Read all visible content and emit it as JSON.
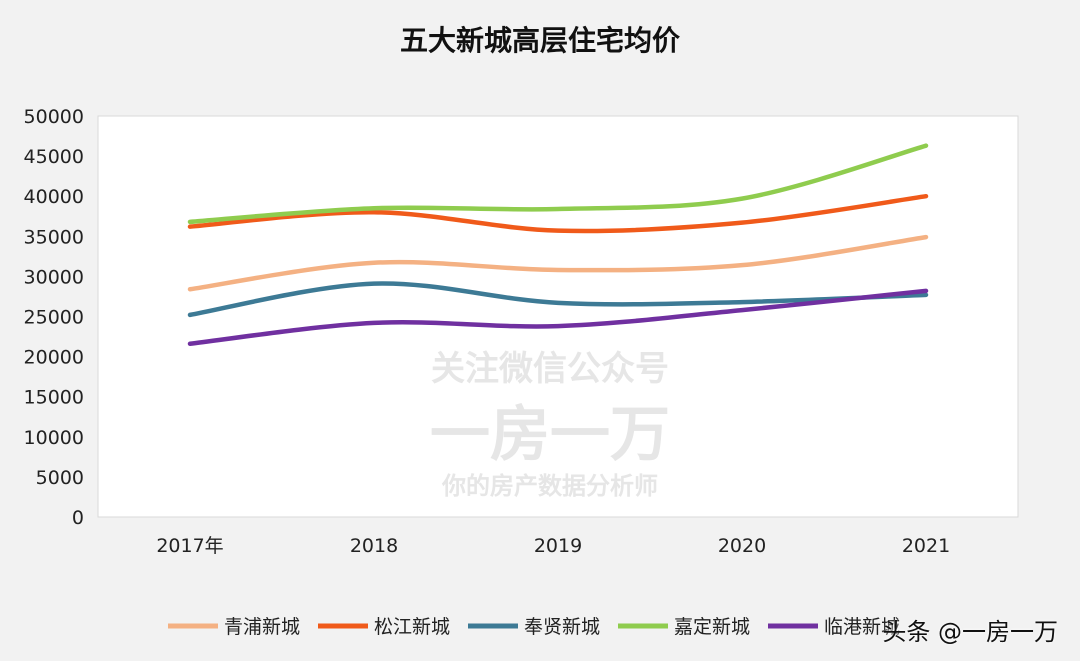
{
  "chart_data": {
    "type": "line",
    "title": "五大新城高层住宅均价",
    "categories": [
      "2017年",
      "2018",
      "2019",
      "2020",
      "2021"
    ],
    "ylim": [
      0,
      50000
    ],
    "yticks": [
      0,
      5000,
      10000,
      15000,
      20000,
      25000,
      30000,
      35000,
      40000,
      45000,
      50000
    ],
    "grid": false,
    "smooth": true,
    "legend_position": "bottom",
    "series": [
      {
        "name": "青浦新城",
        "color": "#f4b183",
        "values": [
          28400,
          31700,
          30800,
          31400,
          34900
        ]
      },
      {
        "name": "松江新城",
        "color": "#f05a1a",
        "values": [
          36200,
          38000,
          35700,
          36700,
          40000
        ]
      },
      {
        "name": "奉贤新城",
        "color": "#3d7a95",
        "values": [
          25200,
          29100,
          26700,
          26800,
          27700
        ]
      },
      {
        "name": "嘉定新城",
        "color": "#8fcc4e",
        "values": [
          36800,
          38500,
          38400,
          39700,
          46300
        ]
      },
      {
        "name": "临港新城",
        "color": "#7030a0",
        "values": [
          21600,
          24200,
          23800,
          25800,
          28200
        ]
      }
    ]
  },
  "watermark": {
    "line1": "关注微信公众号",
    "line2": "一房一万",
    "line3": "你的房产数据分析师"
  },
  "overlay_credit": "头条 @一房一万"
}
